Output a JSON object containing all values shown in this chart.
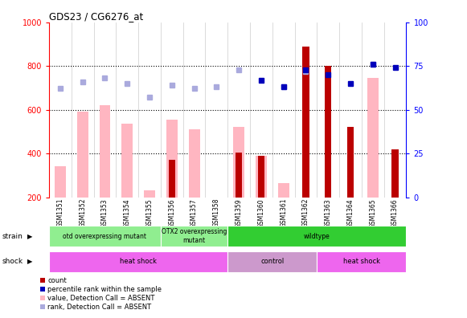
{
  "title": "GDS23 / CG6276_at",
  "samples": [
    "GSM1351",
    "GSM1352",
    "GSM1353",
    "GSM1354",
    "GSM1355",
    "GSM1356",
    "GSM1357",
    "GSM1358",
    "GSM1359",
    "GSM1360",
    "GSM1361",
    "GSM1362",
    "GSM1363",
    "GSM1364",
    "GSM1365",
    "GSM1366"
  ],
  "count_values": [
    null,
    null,
    null,
    null,
    null,
    370,
    null,
    null,
    405,
    390,
    null,
    890,
    800,
    520,
    null,
    420
  ],
  "pink_bar_values": [
    340,
    590,
    620,
    535,
    230,
    555,
    510,
    null,
    520,
    390,
    265,
    null,
    null,
    null,
    745,
    null
  ],
  "blue_square_values": [
    null,
    null,
    null,
    null,
    null,
    null,
    null,
    null,
    null,
    67,
    63,
    73,
    70,
    65,
    76,
    74
  ],
  "lavender_square_values": [
    62,
    66,
    68,
    65,
    57,
    64,
    62,
    63,
    73,
    null,
    63,
    72,
    null,
    null,
    76,
    null
  ],
  "ylim_left": [
    200,
    1000
  ],
  "ylim_right": [
    0,
    100
  ],
  "yticks_left": [
    200,
    400,
    600,
    800,
    1000
  ],
  "yticks_right": [
    0,
    25,
    50,
    75,
    100
  ],
  "strain_group_boundaries": [
    [
      0,
      5,
      "otd overexpressing mutant",
      "#90EE90"
    ],
    [
      5,
      8,
      "OTX2 overexpressing\nmutant",
      "#90EE90"
    ],
    [
      8,
      16,
      "wildtype",
      "#32CD32"
    ]
  ],
  "shock_group_boundaries": [
    [
      0,
      8,
      "heat shock",
      "#EE66EE"
    ],
    [
      8,
      12,
      "control",
      "#CC99CC"
    ],
    [
      12,
      16,
      "heat shock",
      "#EE66EE"
    ]
  ],
  "dark_red": "#BB0000",
  "pink": "#FFB6C1",
  "dark_blue": "#0000BB",
  "lavender": "#AAAADD",
  "label_strain": "strain",
  "label_shock": "shock",
  "legend_labels": [
    "count",
    "percentile rank within the sample",
    "value, Detection Call = ABSENT",
    "rank, Detection Call = ABSENT"
  ],
  "legend_colors": [
    "#BB0000",
    "#0000BB",
    "#FFB6C1",
    "#AAAADD"
  ]
}
